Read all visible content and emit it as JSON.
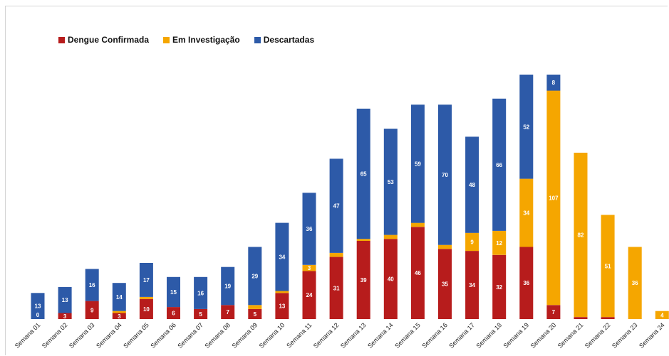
{
  "chart_data": {
    "type": "bar",
    "stacked": true,
    "categories": [
      "Semana 01",
      "Semana 02",
      "Semana 03",
      "Semana 04",
      "Semana 05",
      "Semana 06",
      "Semana 07",
      "Semana 08",
      "Semana 09",
      "Semana 10",
      "Semana 11",
      "Semana 12",
      "Semana 13",
      "Semana 14",
      "Semana 15",
      "Semana 16",
      "Semana 17",
      "Semana 18",
      "Semana 19",
      "Semana 20",
      "Semana 21",
      "Semana 22",
      "Semana 23",
      "Semana 24"
    ],
    "series": [
      {
        "name": "Dengue Confirmada",
        "color": "#b71c1c",
        "values": [
          0,
          3,
          9,
          3,
          10,
          6,
          5,
          7,
          5,
          13,
          24,
          31,
          39,
          40,
          46,
          35,
          34,
          32,
          36,
          7,
          1,
          1,
          0,
          0
        ]
      },
      {
        "name": "Em Investigação",
        "color": "#f5a600",
        "values": [
          0,
          0,
          0,
          1,
          1,
          0,
          0,
          0,
          2,
          1,
          3,
          2,
          1,
          2,
          2,
          2,
          9,
          12,
          34,
          107,
          82,
          51,
          36,
          4
        ]
      },
      {
        "name": "Descartadas",
        "color": "#2d5aa8",
        "values": [
          13,
          13,
          16,
          14,
          17,
          15,
          16,
          19,
          29,
          34,
          36,
          47,
          65,
          53,
          59,
          70,
          48,
          66,
          52,
          8,
          0,
          0,
          0,
          0
        ]
      }
    ],
    "value_labels": [
      [
        "0",
        "3",
        "9",
        "3",
        "10",
        "6",
        "5",
        "7",
        "5",
        "13",
        "24",
        "31",
        "39",
        "40",
        "46",
        "35",
        "34",
        "32",
        "36",
        "7",
        "",
        "",
        "",
        ""
      ],
      [
        "",
        "",
        "",
        "1",
        "1",
        "",
        "",
        "",
        "2",
        "1",
        "3",
        "2",
        "1",
        "2",
        "2",
        "2",
        "9",
        "12",
        "34",
        "107",
        "82",
        "51",
        "36",
        "4"
      ],
      [
        "13",
        "13",
        "16",
        "14",
        "17",
        "15",
        "16",
        "19",
        "29",
        "34",
        "36",
        "47",
        "65",
        "53",
        "59",
        "70",
        "48",
        "66",
        "52",
        "8",
        "",
        "",
        "",
        ""
      ]
    ],
    "ylim": [
      0,
      125
    ],
    "grid": false,
    "legend_position": "top-left",
    "title": "",
    "xlabel": "",
    "ylabel": ""
  }
}
